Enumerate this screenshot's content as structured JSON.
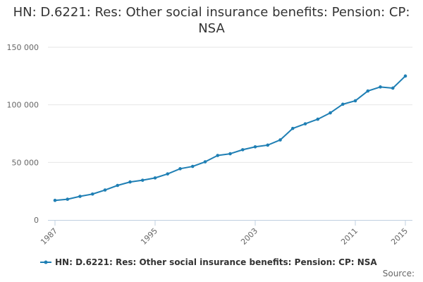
{
  "colors": {
    "series": "#1f7fb4",
    "grid": "#e6e6e6",
    "axis": "#c0d0e0"
  },
  "chart_data": {
    "type": "line",
    "title": "HN: D.6221: Res: Other social insurance benefits: Pension: CP: NSA",
    "xlabel": "",
    "ylabel": "",
    "ylim": [
      0,
      150000
    ],
    "yticks": [
      0,
      50000,
      100000,
      150000
    ],
    "ytick_labels": [
      "0",
      "50 000",
      "100 000",
      "150 000"
    ],
    "xlim": [
      1987,
      2015
    ],
    "xticks": [
      1987,
      1995,
      2003,
      2011,
      2015
    ],
    "xtick_labels": [
      "1987",
      "1995",
      "2003",
      "2011",
      "2015"
    ],
    "series": [
      {
        "name": "HN: D.6221: Res: Other social insurance benefits: Pension: CP: NSA",
        "x": [
          1987,
          1988,
          1989,
          1990,
          1991,
          1992,
          1993,
          1994,
          1995,
          1996,
          1997,
          1998,
          1999,
          2000,
          2001,
          2002,
          2003,
          2004,
          2005,
          2006,
          2007,
          2008,
          2009,
          2010,
          2011,
          2012,
          2013,
          2014,
          2015
        ],
        "values": [
          17000,
          18000,
          20500,
          22500,
          26000,
          30000,
          33000,
          34500,
          36500,
          40000,
          44500,
          46500,
          50500,
          56000,
          57500,
          61000,
          63500,
          65000,
          69500,
          79500,
          83500,
          87500,
          93000,
          100500,
          103500,
          112000,
          115500,
          114500,
          125000
        ]
      }
    ],
    "legend": "bottom-left",
    "source_label": "Source:"
  }
}
